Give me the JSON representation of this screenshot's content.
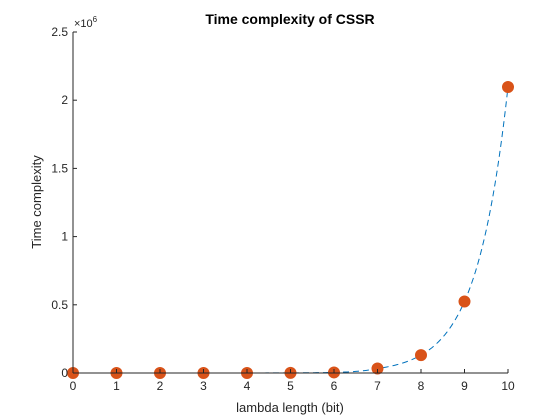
{
  "chart_data": {
    "type": "line",
    "title": "Time complexity of CSSR",
    "xlabel": "lambda length (bit)",
    "ylabel": "Time complexity",
    "x": [
      0,
      1,
      2,
      3,
      4,
      5,
      6,
      7,
      8,
      9,
      10
    ],
    "y_scale_label": "×10",
    "y_scale_exponent": "6",
    "xlim": [
      0,
      10
    ],
    "ylim": [
      0,
      2500000
    ],
    "x_ticks": [
      "0",
      "1",
      "2",
      "3",
      "4",
      "5",
      "6",
      "7",
      "8",
      "9",
      "10"
    ],
    "y_ticks": [
      "0",
      "0.5",
      "1",
      "1.5",
      "2",
      "2.5"
    ],
    "grid": false,
    "series": [
      {
        "marker": "circle",
        "line_style": "none",
        "color": "#D95319",
        "values": [
          1,
          4,
          16,
          64,
          256,
          1024,
          4096,
          32768,
          131072,
          524288,
          2097152
        ]
      },
      {
        "marker": "none",
        "line_style": "dashed",
        "color": "#0072BD",
        "curve": "smooth fit",
        "values": [
          1,
          4,
          16,
          64,
          256,
          1024,
          4096,
          32768,
          131072,
          524288,
          2097152
        ]
      }
    ]
  }
}
